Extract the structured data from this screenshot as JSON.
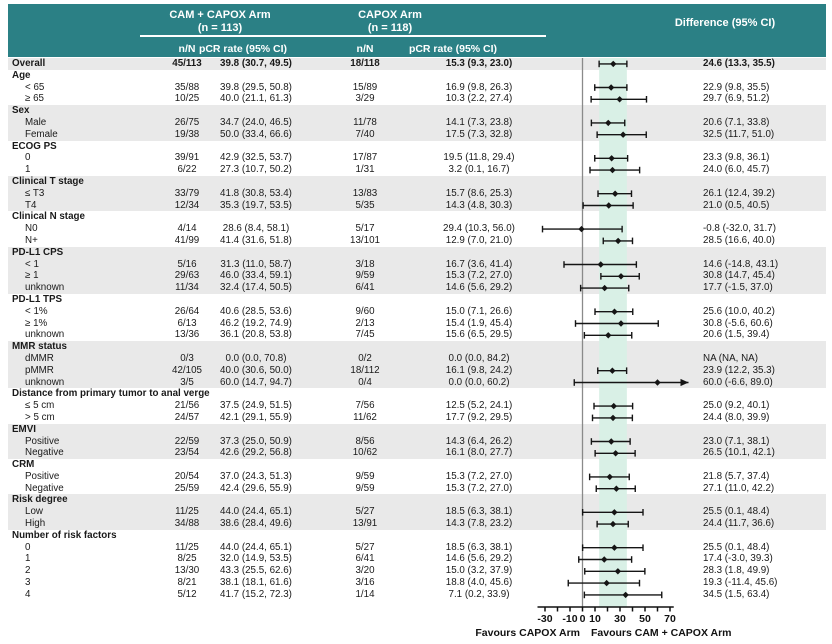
{
  "header": {
    "arm1_title": "CAM + CAPOX Arm",
    "arm1_n": "(n = 113)",
    "arm2_title": "CAPOX Arm",
    "arm2_n": "(n = 118)",
    "diff_title": "Difference (95% CI)",
    "col_nN": "n/N",
    "col_pcr": "pCR rate (95% CI)"
  },
  "colors": {
    "header_teal": "#2b8085",
    "band_gray": "#e9e9e9",
    "shade_mint": "#d9f0e6",
    "text": "#1a1a1a",
    "zero_line": "#8a8a8a",
    "marker": "#151515"
  },
  "chart_data": {
    "type": "scatter",
    "subtype": "forest-plot",
    "x_axis": {
      "range": [
        -36,
        73
      ],
      "tick_values": [
        -30,
        -20,
        -10,
        0,
        10,
        20,
        30,
        40,
        50,
        60,
        70
      ],
      "labeled_ticks": [
        -30,
        -10,
        0,
        10,
        30,
        50,
        70
      ],
      "zero_line": 0,
      "shaded_band": [
        13.3,
        35.5
      ],
      "favours_left": "Favours CAPOX Arm",
      "favours_right": "Favours CAM + CAPOX Arm"
    },
    "rows": [
      {
        "label": "Overall",
        "type": "overall",
        "band": "g",
        "cam_nN": "45/113",
        "cam_pCR": "39.8 (30.7, 49.5)",
        "capox_nN": "18/118",
        "capox_pCR": "15.3 (9.3, 23.0)",
        "diff": "24.6 (13.3, 35.5)",
        "est": 24.6,
        "lo": 13.3,
        "hi": 35.5
      },
      {
        "label": "Age",
        "type": "group",
        "band": "w"
      },
      {
        "label": "< 65",
        "type": "sub",
        "band": "w",
        "cam_nN": "35/88",
        "cam_pCR": "39.8 (29.5, 50.8)",
        "capox_nN": "15/89",
        "capox_pCR": "16.9 (9.8, 26.3)",
        "diff": "22.9 (9.8, 35.5)",
        "est": 22.9,
        "lo": 9.8,
        "hi": 35.5
      },
      {
        "label": "≥ 65",
        "type": "sub",
        "band": "w",
        "cam_nN": "10/25",
        "cam_pCR": "40.0 (21.1, 61.3)",
        "capox_nN": "3/29",
        "capox_pCR": "10.3 (2.2, 27.4)",
        "diff": "29.7 (6.9, 51.2)",
        "est": 29.7,
        "lo": 6.9,
        "hi": 51.2
      },
      {
        "label": "Sex",
        "type": "group",
        "band": "g"
      },
      {
        "label": "Male",
        "type": "sub",
        "band": "g",
        "cam_nN": "26/75",
        "cam_pCR": "34.7 (24.0, 46.5)",
        "capox_nN": "11/78",
        "capox_pCR": "14.1 (7.3, 23.8)",
        "diff": "20.6 (7.1, 33.8)",
        "est": 20.6,
        "lo": 7.1,
        "hi": 33.8
      },
      {
        "label": "Female",
        "type": "sub",
        "band": "g",
        "cam_nN": "19/38",
        "cam_pCR": "50.0 (33.4, 66.6)",
        "capox_nN": "7/40",
        "capox_pCR": "17.5 (7.3, 32.8)",
        "diff": "32.5 (11.7, 51.0)",
        "est": 32.5,
        "lo": 11.7,
        "hi": 51.0
      },
      {
        "label": "ECOG PS",
        "type": "group",
        "band": "w"
      },
      {
        "label": "0",
        "type": "sub",
        "band": "w",
        "cam_nN": "39/91",
        "cam_pCR": "42.9 (32.5, 53.7)",
        "capox_nN": "17/87",
        "capox_pCR": "19.5 (11.8, 29.4)",
        "diff": "23.3 (9.8, 36.1)",
        "est": 23.3,
        "lo": 9.8,
        "hi": 36.1
      },
      {
        "label": "1",
        "type": "sub",
        "band": "w",
        "cam_nN": "6/22",
        "cam_pCR": "27.3 (10.7, 50.2)",
        "capox_nN": "1/31",
        "capox_pCR": "3.2 (0.1, 16.7)",
        "diff": "24.0 (6.0, 45.7)",
        "est": 24.0,
        "lo": 6.0,
        "hi": 45.7
      },
      {
        "label": "Clinical T stage",
        "type": "group",
        "band": "g"
      },
      {
        "label": "≤ T3",
        "type": "sub",
        "band": "g",
        "cam_nN": "33/79",
        "cam_pCR": "41.8 (30.8, 53.4)",
        "capox_nN": "13/83",
        "capox_pCR": "15.7 (8.6, 25.3)",
        "diff": "26.1 (12.4, 39.2)",
        "est": 26.1,
        "lo": 12.4,
        "hi": 39.2
      },
      {
        "label": "T4",
        "type": "sub",
        "band": "g",
        "cam_nN": "12/34",
        "cam_pCR": "35.3 (19.7, 53.5)",
        "capox_nN": "5/35",
        "capox_pCR": "14.3 (4.8, 30.3)",
        "diff": "21.0 (0.5, 40.5)",
        "est": 21.0,
        "lo": 0.5,
        "hi": 40.5
      },
      {
        "label": "Clinical N stage",
        "type": "group",
        "band": "w"
      },
      {
        "label": "N0",
        "type": "sub",
        "band": "w",
        "cam_nN": "4/14",
        "cam_pCR": "28.6 (8.4, 58.1)",
        "capox_nN": "5/17",
        "capox_pCR": "29.4 (10.3, 56.0)",
        "diff": "-0.8 (-32.0, 31.7)",
        "est": -0.8,
        "lo": -32.0,
        "hi": 31.7
      },
      {
        "label": "N+",
        "type": "sub",
        "band": "w",
        "cam_nN": "41/99",
        "cam_pCR": "41.4 (31.6, 51.8)",
        "capox_nN": "13/101",
        "capox_pCR": "12.9 (7.0, 21.0)",
        "diff": "28.5 (16.6, 40.0)",
        "est": 28.5,
        "lo": 16.6,
        "hi": 40.0
      },
      {
        "label": "PD-L1 CPS",
        "type": "group",
        "band": "g"
      },
      {
        "label": "< 1",
        "type": "sub",
        "band": "g",
        "cam_nN": "5/16",
        "cam_pCR": "31.3 (11.0, 58.7)",
        "capox_nN": "3/18",
        "capox_pCR": "16.7 (3.6, 41.4)",
        "diff": "14.6 (-14.8, 43.1)",
        "est": 14.6,
        "lo": -14.8,
        "hi": 43.1
      },
      {
        "label": "≥ 1",
        "type": "sub",
        "band": "g",
        "cam_nN": "29/63",
        "cam_pCR": "46.0 (33.4, 59.1)",
        "capox_nN": "9/59",
        "capox_pCR": "15.3 (7.2, 27.0)",
        "diff": "30.8 (14.7, 45.4)",
        "est": 30.8,
        "lo": 14.7,
        "hi": 45.4
      },
      {
        "label": "unknown",
        "type": "sub",
        "band": "g",
        "cam_nN": "11/34",
        "cam_pCR": "32.4 (17.4, 50.5)",
        "capox_nN": "6/41",
        "capox_pCR": "14.6 (5.6, 29.2)",
        "diff": "17.7 (-1.5, 37.0)",
        "est": 17.7,
        "lo": -1.5,
        "hi": 37.0
      },
      {
        "label": "PD-L1 TPS",
        "type": "group",
        "band": "w"
      },
      {
        "label": "< 1%",
        "type": "sub",
        "band": "w",
        "cam_nN": "26/64",
        "cam_pCR": "40.6 (28.5, 53.6)",
        "capox_nN": "9/60",
        "capox_pCR": "15.0 (7.1, 26.6)",
        "diff": "25.6 (10.0, 40.2)",
        "est": 25.6,
        "lo": 10.0,
        "hi": 40.2
      },
      {
        "label": "≥ 1%",
        "type": "sub",
        "band": "w",
        "cam_nN": "6/13",
        "cam_pCR": "46.2 (19.2, 74.9)",
        "capox_nN": "2/13",
        "capox_pCR": "15.4 (1.9, 45.4)",
        "diff": "30.8 (-5.6, 60.6)",
        "est": 30.8,
        "lo": -5.6,
        "hi": 60.6
      },
      {
        "label": "unknown",
        "type": "sub",
        "band": "w",
        "cam_nN": "13/36",
        "cam_pCR": "36.1 (20.8, 53.8)",
        "capox_nN": "7/45",
        "capox_pCR": "15.6 (6.5, 29.5)",
        "diff": "20.6 (1.5, 39.4)",
        "est": 20.6,
        "lo": 1.5,
        "hi": 39.4
      },
      {
        "label": "MMR status",
        "type": "group",
        "band": "g"
      },
      {
        "label": "dMMR",
        "type": "sub",
        "band": "g",
        "cam_nN": "0/3",
        "cam_pCR": "0.0 (0.0, 70.8)",
        "capox_nN": "0/2",
        "capox_pCR": "0.0 (0.0, 84.2)",
        "diff": "NA (NA, NA)",
        "est": null,
        "lo": null,
        "hi": null
      },
      {
        "label": "pMMR",
        "type": "sub",
        "band": "g",
        "cam_nN": "42/105",
        "cam_pCR": "40.0 (30.6, 50.0)",
        "capox_nN": "18/112",
        "capox_pCR": "16.1 (9.8, 24.2)",
        "diff": "23.9 (12.2, 35.3)",
        "est": 23.9,
        "lo": 12.2,
        "hi": 35.3
      },
      {
        "label": "unknown",
        "type": "sub",
        "band": "g",
        "cam_nN": "3/5",
        "cam_pCR": "60.0 (14.7, 94.7)",
        "capox_nN": "0/4",
        "capox_pCR": "0.0 (0.0, 60.2)",
        "diff": "60.0 (-6.6, 89.0)",
        "est": 60.0,
        "lo": -6.6,
        "hi": 89.0
      },
      {
        "label": "Distance from primary tumor to anal verge",
        "type": "group",
        "band": "w"
      },
      {
        "label": "≤ 5 cm",
        "type": "sub",
        "band": "w",
        "cam_nN": "21/56",
        "cam_pCR": "37.5 (24.9, 51.5)",
        "capox_nN": "7/56",
        "capox_pCR": "12.5 (5.2, 24.1)",
        "diff": "25.0 (9.2, 40.1)",
        "est": 25.0,
        "lo": 9.2,
        "hi": 40.1
      },
      {
        "label": "> 5 cm",
        "type": "sub",
        "band": "w",
        "cam_nN": "24/57",
        "cam_pCR": "42.1 (29.1, 55.9)",
        "capox_nN": "11/62",
        "capox_pCR": "17.7 (9.2, 29.5)",
        "diff": "24.4 (8.0, 39.9)",
        "est": 24.4,
        "lo": 8.0,
        "hi": 39.9
      },
      {
        "label": "EMVI",
        "type": "group",
        "band": "g"
      },
      {
        "label": "Positive",
        "type": "sub",
        "band": "g",
        "cam_nN": "22/59",
        "cam_pCR": "37.3 (25.0, 50.9)",
        "capox_nN": "8/56",
        "capox_pCR": "14.3 (6.4, 26.2)",
        "diff": "23.0 (7.1, 38.1)",
        "est": 23.0,
        "lo": 7.1,
        "hi": 38.1
      },
      {
        "label": "Negative",
        "type": "sub",
        "band": "g",
        "cam_nN": "23/54",
        "cam_pCR": "42.6 (29.2, 56.8)",
        "capox_nN": "10/62",
        "capox_pCR": "16.1 (8.0, 27.7)",
        "diff": "26.5 (10.1, 42.1)",
        "est": 26.5,
        "lo": 10.1,
        "hi": 42.1
      },
      {
        "label": "CRM",
        "type": "group",
        "band": "w"
      },
      {
        "label": "Positive",
        "type": "sub",
        "band": "w",
        "cam_nN": "20/54",
        "cam_pCR": "37.0 (24.3, 51.3)",
        "capox_nN": "9/59",
        "capox_pCR": "15.3 (7.2, 27.0)",
        "diff": "21.8 (5.7, 37.4)",
        "est": 21.8,
        "lo": 5.7,
        "hi": 37.4
      },
      {
        "label": "Negative",
        "type": "sub",
        "band": "w",
        "cam_nN": "25/59",
        "cam_pCR": "42.4 (29.6, 55.9)",
        "capox_nN": "9/59",
        "capox_pCR": "15.3 (7.2, 27.0)",
        "diff": "27.1 (11.0, 42.2)",
        "est": 27.1,
        "lo": 11.0,
        "hi": 42.2
      },
      {
        "label": "Risk degree",
        "type": "group",
        "band": "g"
      },
      {
        "label": "Low",
        "type": "sub",
        "band": "g",
        "cam_nN": "11/25",
        "cam_pCR": "44.0 (24.4, 65.1)",
        "capox_nN": "5/27",
        "capox_pCR": "18.5 (6.3, 38.1)",
        "diff": "25.5 (0.1, 48.4)",
        "est": 25.5,
        "lo": 0.1,
        "hi": 48.4
      },
      {
        "label": "High",
        "type": "sub",
        "band": "g",
        "cam_nN": "34/88",
        "cam_pCR": "38.6 (28.4, 49.6)",
        "capox_nN": "13/91",
        "capox_pCR": "14.3 (7.8, 23.2)",
        "diff": "24.4 (11.7, 36.6)",
        "est": 24.4,
        "lo": 11.7,
        "hi": 36.6
      },
      {
        "label": "Number of risk factors",
        "type": "group",
        "band": "w"
      },
      {
        "label": "0",
        "type": "sub",
        "band": "w",
        "cam_nN": "11/25",
        "cam_pCR": "44.0 (24.4, 65.1)",
        "capox_nN": "5/27",
        "capox_pCR": "18.5 (6.3, 38.1)",
        "diff": "25.5 (0.1, 48.4)",
        "est": 25.5,
        "lo": 0.1,
        "hi": 48.4
      },
      {
        "label": "1",
        "type": "sub",
        "band": "w",
        "cam_nN": "8/25",
        "cam_pCR": "32.0 (14.9, 53.5)",
        "capox_nN": "6/41",
        "capox_pCR": "14.6 (5.6, 29.2)",
        "diff": "17.4 (-3.0, 39.3)",
        "est": 17.4,
        "lo": -3.0,
        "hi": 39.3
      },
      {
        "label": "2",
        "type": "sub",
        "band": "w",
        "cam_nN": "13/30",
        "cam_pCR": "43.3 (25.5, 62.6)",
        "capox_nN": "3/20",
        "capox_pCR": "15.0 (3.2, 37.9)",
        "diff": "28.3 (1.8, 49.9)",
        "est": 28.3,
        "lo": 1.8,
        "hi": 49.9
      },
      {
        "label": "3",
        "type": "sub",
        "band": "w",
        "cam_nN": "8/21",
        "cam_pCR": "38.1 (18.1, 61.6)",
        "capox_nN": "3/16",
        "capox_pCR": "18.8 (4.0, 45.6)",
        "diff": "19.3 (-11.4, 45.6)",
        "est": 19.3,
        "lo": -11.4,
        "hi": 45.6
      },
      {
        "label": "4",
        "type": "sub",
        "band": "w",
        "cam_nN": "5/12",
        "cam_pCR": "41.7 (15.2, 72.3)",
        "capox_nN": "1/14",
        "capox_pCR": "7.1 (0.2, 33.9)",
        "diff": "34.5 (1.5, 63.4)",
        "est": 34.5,
        "lo": 1.5,
        "hi": 63.4
      }
    ]
  }
}
